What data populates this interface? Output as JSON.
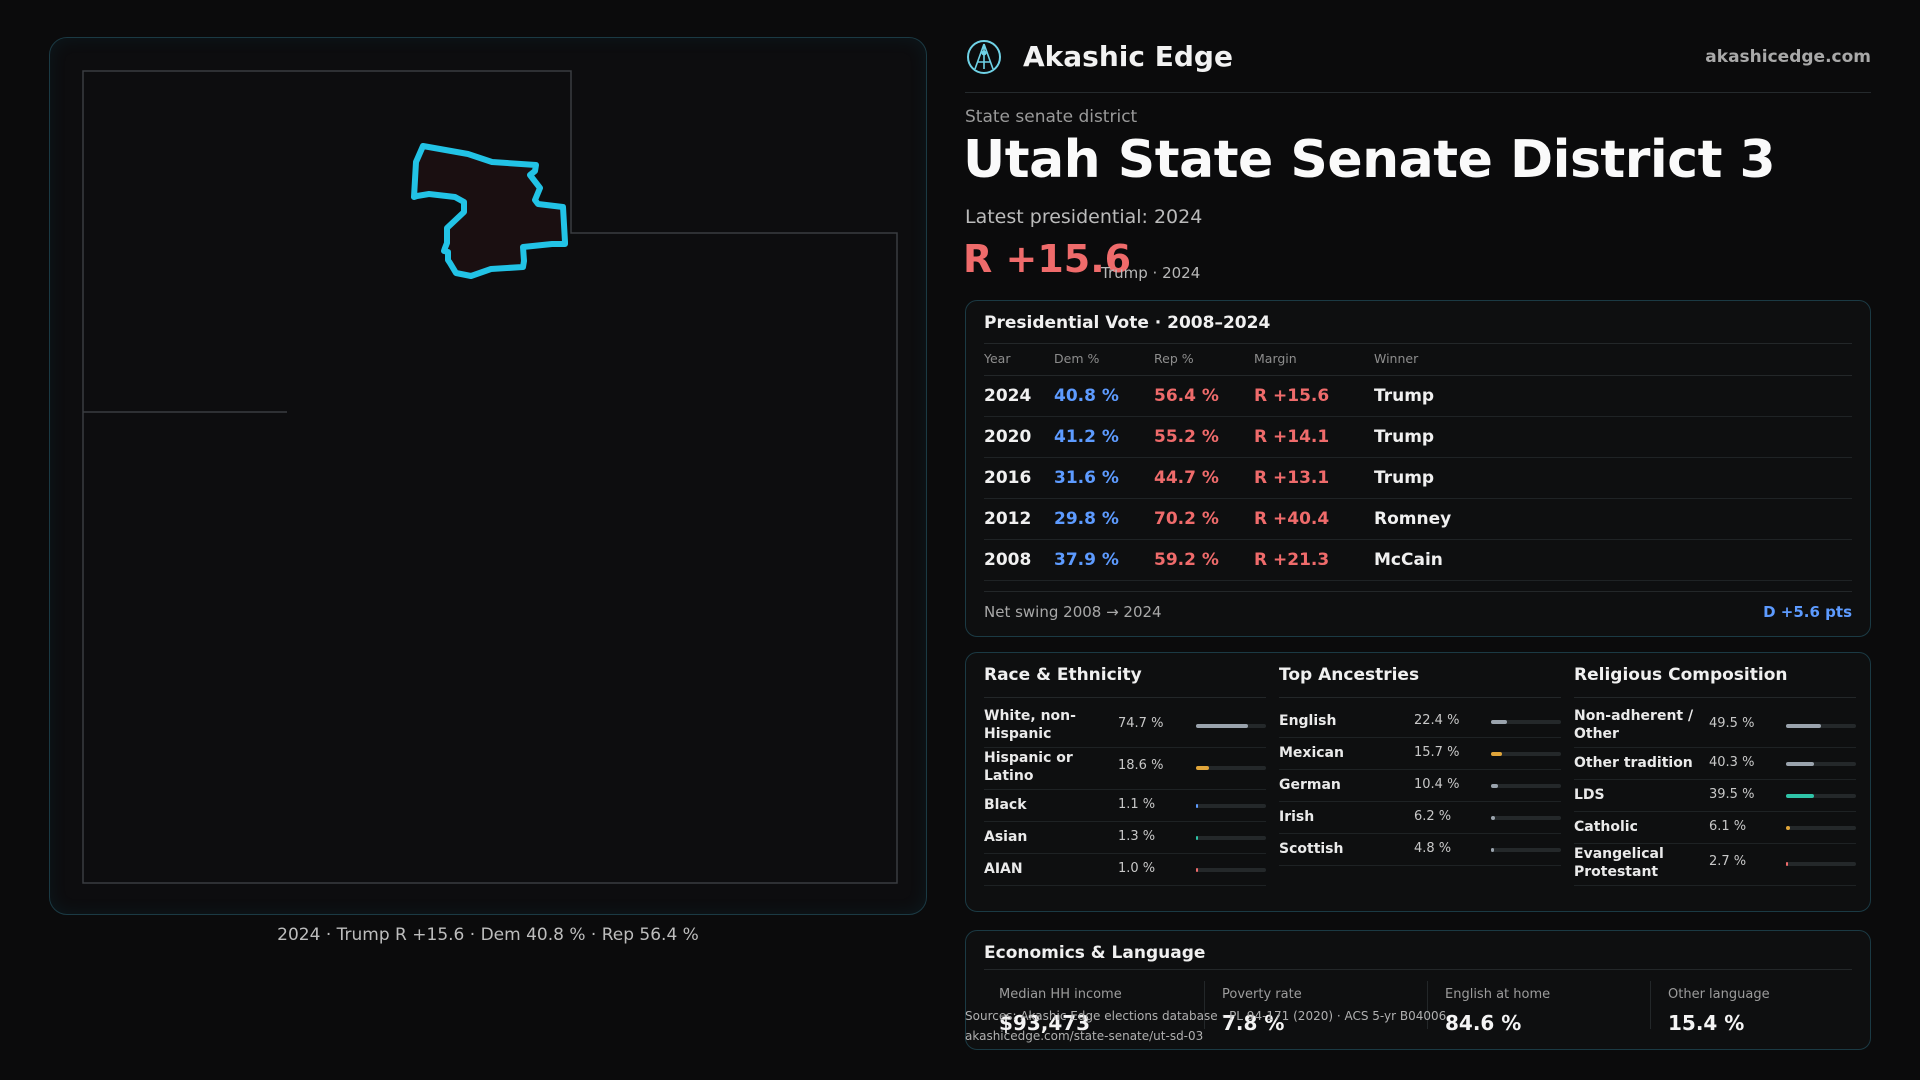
{
  "brand": {
    "name": "Akashic Edge",
    "url": "akashicedge.com",
    "logo_icon": "akashic-edge-logo-icon"
  },
  "header": {
    "kicker": "State senate district",
    "title": "Utah State Senate District 3",
    "subtitle": "Latest presidential: 2024",
    "margin": "R +15.6",
    "margin_note": "Trump · 2024"
  },
  "map": {
    "caption": "2024 · Trump R +15.6 · Dem 40.8 % · Rep 56.4 %",
    "highlight_color": "#22c3e6"
  },
  "presidential": {
    "title": "Presidential Vote · 2008–2024",
    "columns": [
      "Year",
      "Dem %",
      "Rep %",
      "Margin",
      "Winner"
    ],
    "rows": [
      {
        "year": "2024",
        "dem": "40.8 %",
        "rep": "56.4 %",
        "margin": "R +15.6",
        "winner": "Trump"
      },
      {
        "year": "2020",
        "dem": "41.2 %",
        "rep": "55.2 %",
        "margin": "R +14.1",
        "winner": "Trump"
      },
      {
        "year": "2016",
        "dem": "31.6 %",
        "rep": "44.7 %",
        "margin": "R +13.1",
        "winner": "Trump"
      },
      {
        "year": "2012",
        "dem": "29.8 %",
        "rep": "70.2 %",
        "margin": "R +40.4",
        "winner": "Romney"
      },
      {
        "year": "2008",
        "dem": "37.9 %",
        "rep": "59.2 %",
        "margin": "R +21.3",
        "winner": "McCain"
      }
    ],
    "swing_label": "Net swing 2008 → 2024",
    "swing_value": "D +5.6 pts",
    "colors": {
      "dem": "#5d9bff",
      "rep": "#ef6b6b"
    }
  },
  "race": {
    "title": "Race & Ethnicity",
    "items": [
      {
        "label": "White, non-Hispanic",
        "pct": "74.7 %",
        "value": 74.7,
        "color": "#9aa3ad"
      },
      {
        "label": "Hispanic or Latino",
        "pct": "18.6 %",
        "value": 18.6,
        "color": "#e0a53a"
      },
      {
        "label": "Black",
        "pct": "1.1 %",
        "value": 1.1,
        "color": "#5d9bff"
      },
      {
        "label": "Asian",
        "pct": "1.3 %",
        "value": 1.3,
        "color": "#2fc4a8"
      },
      {
        "label": "AIAN",
        "pct": "1.0 %",
        "value": 1.0,
        "color": "#ef6b6b"
      }
    ]
  },
  "ancestry": {
    "title": "Top Ancestries",
    "items": [
      {
        "label": "English",
        "pct": "22.4 %",
        "value": 22.4,
        "color": "#9aa3ad"
      },
      {
        "label": "Mexican",
        "pct": "15.7 %",
        "value": 15.7,
        "color": "#e0a53a"
      },
      {
        "label": "German",
        "pct": "10.4 %",
        "value": 10.4,
        "color": "#9aa3ad"
      },
      {
        "label": "Irish",
        "pct": "6.2 %",
        "value": 6.2,
        "color": "#9aa3ad"
      },
      {
        "label": "Scottish",
        "pct": "4.8 %",
        "value": 4.8,
        "color": "#9aa3ad"
      }
    ]
  },
  "religion": {
    "title": "Religious Composition",
    "items": [
      {
        "label": "Non-adherent / Other",
        "pct": "49.5 %",
        "value": 49.5,
        "color": "#9aa3ad"
      },
      {
        "label": "Other tradition",
        "pct": "40.3 %",
        "value": 40.3,
        "color": "#9aa3ad"
      },
      {
        "label": "LDS",
        "pct": "39.5 %",
        "value": 39.5,
        "color": "#2fc4a8"
      },
      {
        "label": "Catholic",
        "pct": "6.1 %",
        "value": 6.1,
        "color": "#e0a53a"
      },
      {
        "label": "Evangelical Protestant",
        "pct": "2.7 %",
        "value": 2.7,
        "color": "#ef6b6b"
      }
    ]
  },
  "economics": {
    "title": "Economics & Language",
    "stats": [
      {
        "label": "Median HH income",
        "value": "$93,473"
      },
      {
        "label": "Poverty rate",
        "value": "7.8 %"
      },
      {
        "label": "English at home",
        "value": "84.6 %"
      },
      {
        "label": "Other language",
        "value": "15.4 %"
      }
    ]
  },
  "footer": {
    "sources": "Sources: Akashic Edge elections database · PL 94-171 (2020) · ACS 5-yr B04006",
    "link": "akashicedge.com/state-senate/ut-sd-03"
  }
}
